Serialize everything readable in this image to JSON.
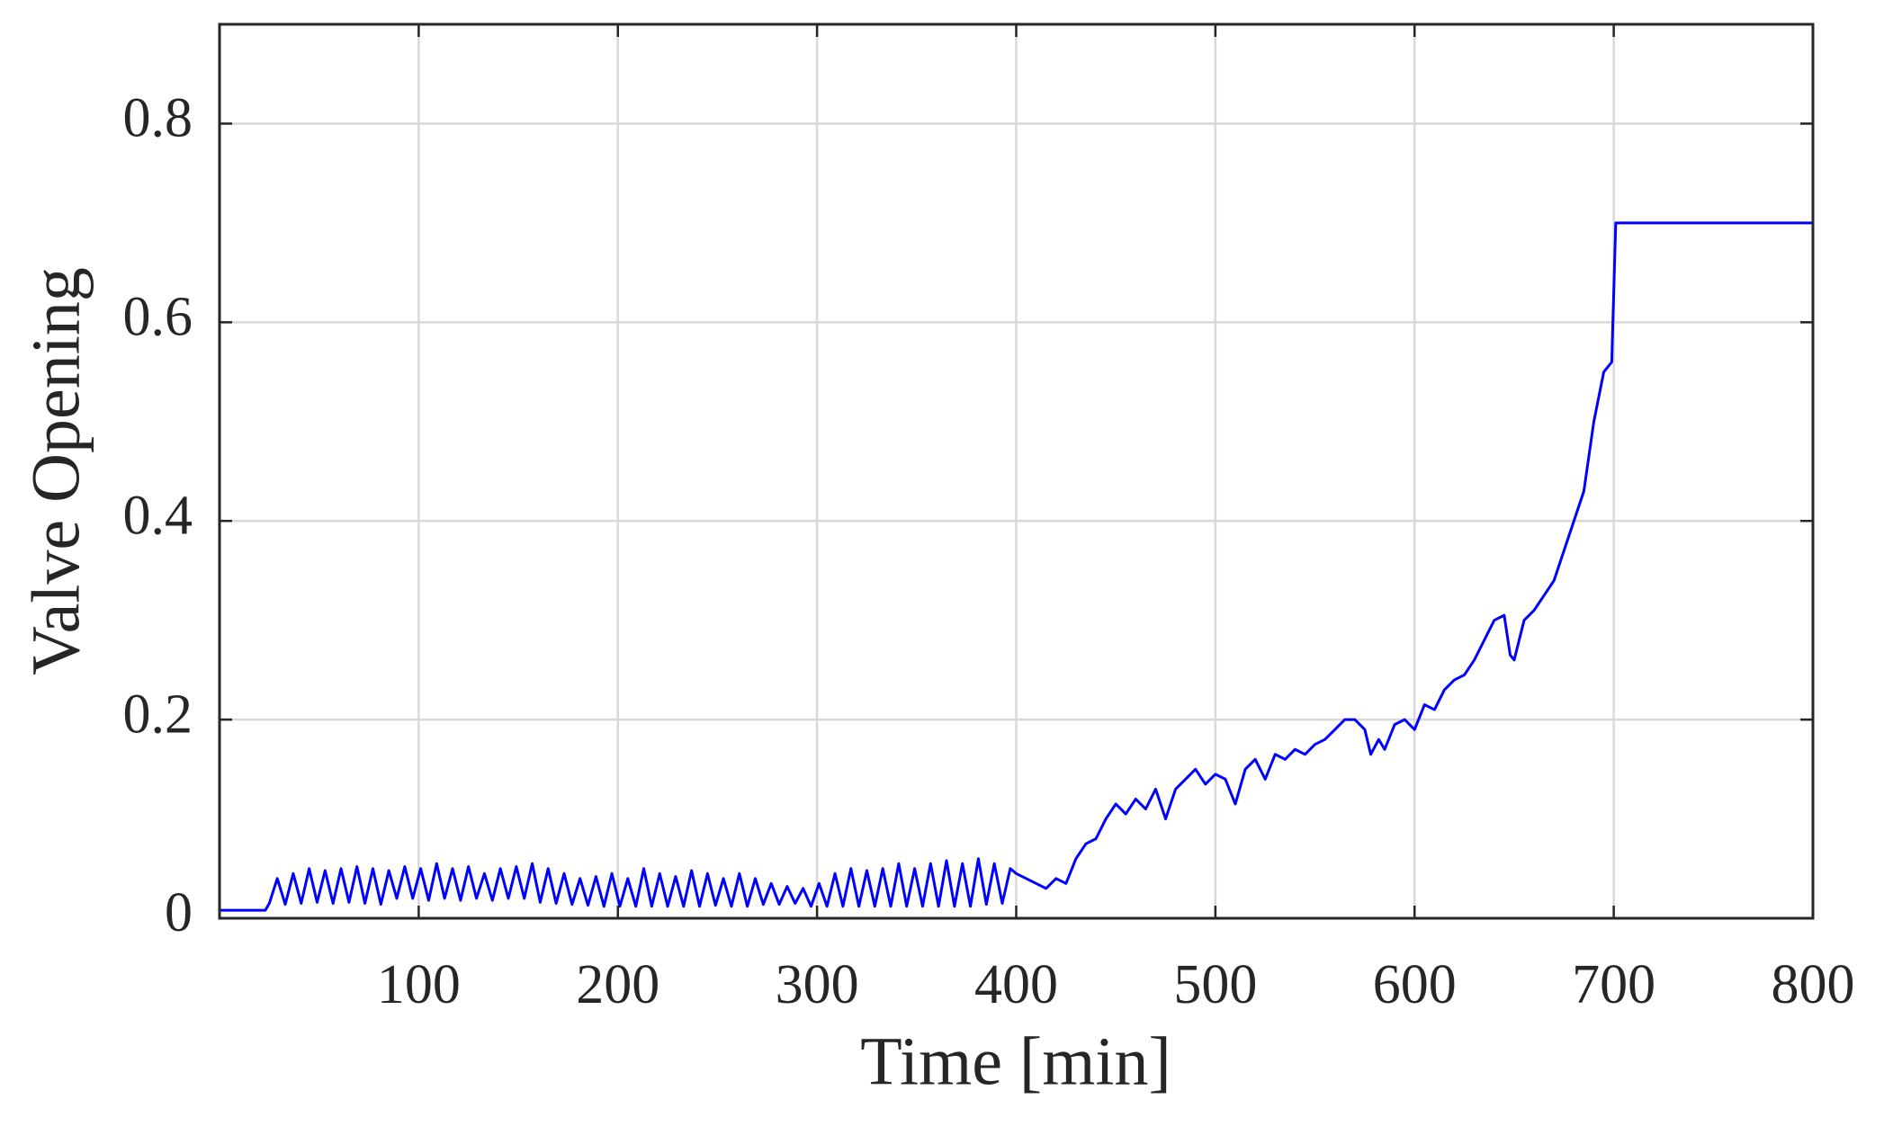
{
  "chart_data": {
    "type": "line",
    "xlabel": "Time [min]",
    "ylabel": "Valve Opening",
    "xlim": [
      0,
      800
    ],
    "xticks": [
      100,
      200,
      300,
      400,
      500,
      600,
      700,
      800
    ],
    "ylim": [
      0,
      0.9
    ],
    "yticks": [
      0,
      0.2,
      0.4,
      0.6,
      0.8
    ],
    "grid": true,
    "series": [
      {
        "color": "#0000ff",
        "x": [
          0,
          23,
          25,
          29,
          33,
          37,
          41,
          45,
          49,
          53,
          57,
          61,
          65,
          69,
          73,
          77,
          81,
          85,
          89,
          93,
          97,
          101,
          105,
          109,
          113,
          117,
          121,
          125,
          129,
          133,
          137,
          141,
          145,
          149,
          153,
          157,
          161,
          165,
          169,
          173,
          177,
          181,
          185,
          189,
          193,
          197,
          201,
          205,
          209,
          213,
          217,
          221,
          225,
          229,
          233,
          237,
          241,
          245,
          249,
          253,
          257,
          261,
          265,
          269,
          273,
          277,
          281,
          285,
          289,
          293,
          297,
          301,
          305,
          309,
          313,
          317,
          321,
          325,
          329,
          333,
          337,
          341,
          345,
          349,
          353,
          357,
          361,
          365,
          369,
          373,
          377,
          381,
          385,
          389,
          393,
          397,
          400,
          405,
          410,
          415,
          420,
          425,
          430,
          435,
          440,
          445,
          450,
          455,
          460,
          465,
          470,
          475,
          480,
          485,
          490,
          495,
          500,
          505,
          510,
          515,
          520,
          525,
          530,
          535,
          540,
          545,
          550,
          555,
          560,
          565,
          570,
          575,
          578,
          582,
          585,
          590,
          595,
          600,
          605,
          610,
          615,
          620,
          625,
          630,
          635,
          640,
          645,
          648,
          650,
          655,
          660,
          665,
          670,
          675,
          680,
          685,
          690,
          695,
          699,
          701,
          800
        ],
        "values": [
          0.008,
          0.008,
          0.015,
          0.04,
          0.014,
          0.045,
          0.015,
          0.05,
          0.016,
          0.048,
          0.015,
          0.05,
          0.016,
          0.052,
          0.015,
          0.05,
          0.014,
          0.048,
          0.02,
          0.052,
          0.02,
          0.05,
          0.018,
          0.055,
          0.02,
          0.05,
          0.018,
          0.052,
          0.02,
          0.045,
          0.018,
          0.05,
          0.02,
          0.052,
          0.02,
          0.055,
          0.016,
          0.05,
          0.015,
          0.045,
          0.014,
          0.04,
          0.013,
          0.042,
          0.012,
          0.045,
          0.012,
          0.04,
          0.012,
          0.05,
          0.012,
          0.045,
          0.012,
          0.042,
          0.012,
          0.048,
          0.012,
          0.045,
          0.013,
          0.04,
          0.012,
          0.045,
          0.012,
          0.04,
          0.014,
          0.035,
          0.014,
          0.032,
          0.015,
          0.03,
          0.012,
          0.035,
          0.012,
          0.045,
          0.012,
          0.05,
          0.012,
          0.048,
          0.012,
          0.05,
          0.012,
          0.055,
          0.012,
          0.05,
          0.012,
          0.055,
          0.012,
          0.058,
          0.012,
          0.055,
          0.012,
          0.06,
          0.014,
          0.055,
          0.015,
          0.05,
          0.045,
          0.04,
          0.035,
          0.03,
          0.04,
          0.035,
          0.06,
          0.075,
          0.08,
          0.1,
          0.115,
          0.105,
          0.12,
          0.11,
          0.13,
          0.1,
          0.13,
          0.14,
          0.15,
          0.135,
          0.145,
          0.14,
          0.115,
          0.15,
          0.16,
          0.14,
          0.165,
          0.16,
          0.17,
          0.165,
          0.175,
          0.18,
          0.19,
          0.2,
          0.2,
          0.19,
          0.165,
          0.18,
          0.17,
          0.195,
          0.2,
          0.19,
          0.215,
          0.21,
          0.23,
          0.24,
          0.245,
          0.26,
          0.28,
          0.3,
          0.305,
          0.265,
          0.26,
          0.3,
          0.31,
          0.325,
          0.34,
          0.37,
          0.4,
          0.43,
          0.5,
          0.55,
          0.56,
          0.7,
          0.7
        ]
      }
    ]
  }
}
